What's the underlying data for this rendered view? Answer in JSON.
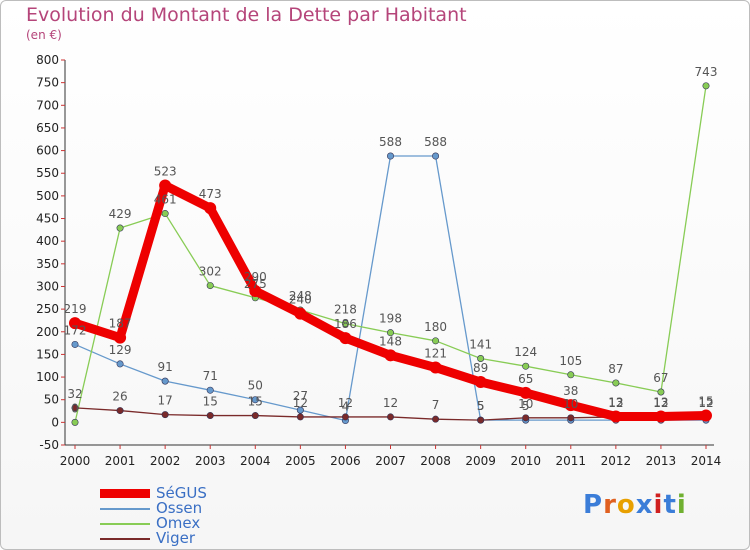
{
  "title": "Evolution du Montant de la Dette par Habitant",
  "subtitle": "(en €)",
  "logo": "Proxiti",
  "chart_data": {
    "type": "line",
    "x": [
      "2000",
      "2001",
      "2002",
      "2003",
      "2004",
      "2005",
      "2006",
      "2007",
      "2008",
      "2009",
      "2010",
      "2011",
      "2012",
      "2013",
      "2014"
    ],
    "ylim": [
      -50,
      800
    ],
    "yticks": [
      -50,
      0,
      50,
      100,
      150,
      200,
      250,
      300,
      350,
      400,
      450,
      500,
      550,
      600,
      650,
      700,
      750,
      800
    ],
    "grid": false,
    "legend": "bottom-left",
    "series": [
      {
        "name": "SéGUS",
        "color": "#ee0000",
        "values": [
          219,
          187,
          523,
          473,
          290,
          240,
          186,
          148,
          121,
          89,
          65,
          38,
          13,
          13,
          15
        ]
      },
      {
        "name": "Ossen",
        "color": "#6699cc",
        "values": [
          172,
          129,
          91,
          71,
          50,
          27,
          4,
          588,
          588,
          5,
          5,
          5,
          5,
          5,
          5
        ]
      },
      {
        "name": "Omex",
        "color": "#88cc55",
        "values": [
          0,
          429,
          461,
          302,
          275,
          248,
          218,
          198,
          180,
          141,
          124,
          105,
          87,
          67,
          743
        ]
      },
      {
        "name": "Viger",
        "color": "#7a2a2a",
        "values": [
          32,
          26,
          17,
          15,
          15,
          12,
          12,
          12,
          7,
          5,
          10,
          10,
          12,
          12,
          12
        ]
      }
    ],
    "labels": [
      [
        "219",
        "187",
        "523",
        "473",
        "290",
        "240",
        "186",
        "148",
        "121",
        "89",
        "65",
        "38",
        "13",
        "13",
        "15"
      ],
      [
        "172",
        "129",
        "91",
        "71",
        "50",
        "27",
        "4",
        "588",
        "588",
        "5",
        "5",
        "",
        "",
        "",
        ""
      ],
      [
        "0",
        "429",
        "461",
        "302",
        "275",
        "248",
        "218",
        "198",
        "180",
        "141",
        "124",
        "105",
        "87",
        "67",
        "743"
      ],
      [
        "32",
        "26",
        "17",
        "15",
        "15",
        "12",
        "12",
        "12",
        "7",
        "5",
        "10",
        "10",
        "12",
        "12",
        "12"
      ]
    ]
  }
}
